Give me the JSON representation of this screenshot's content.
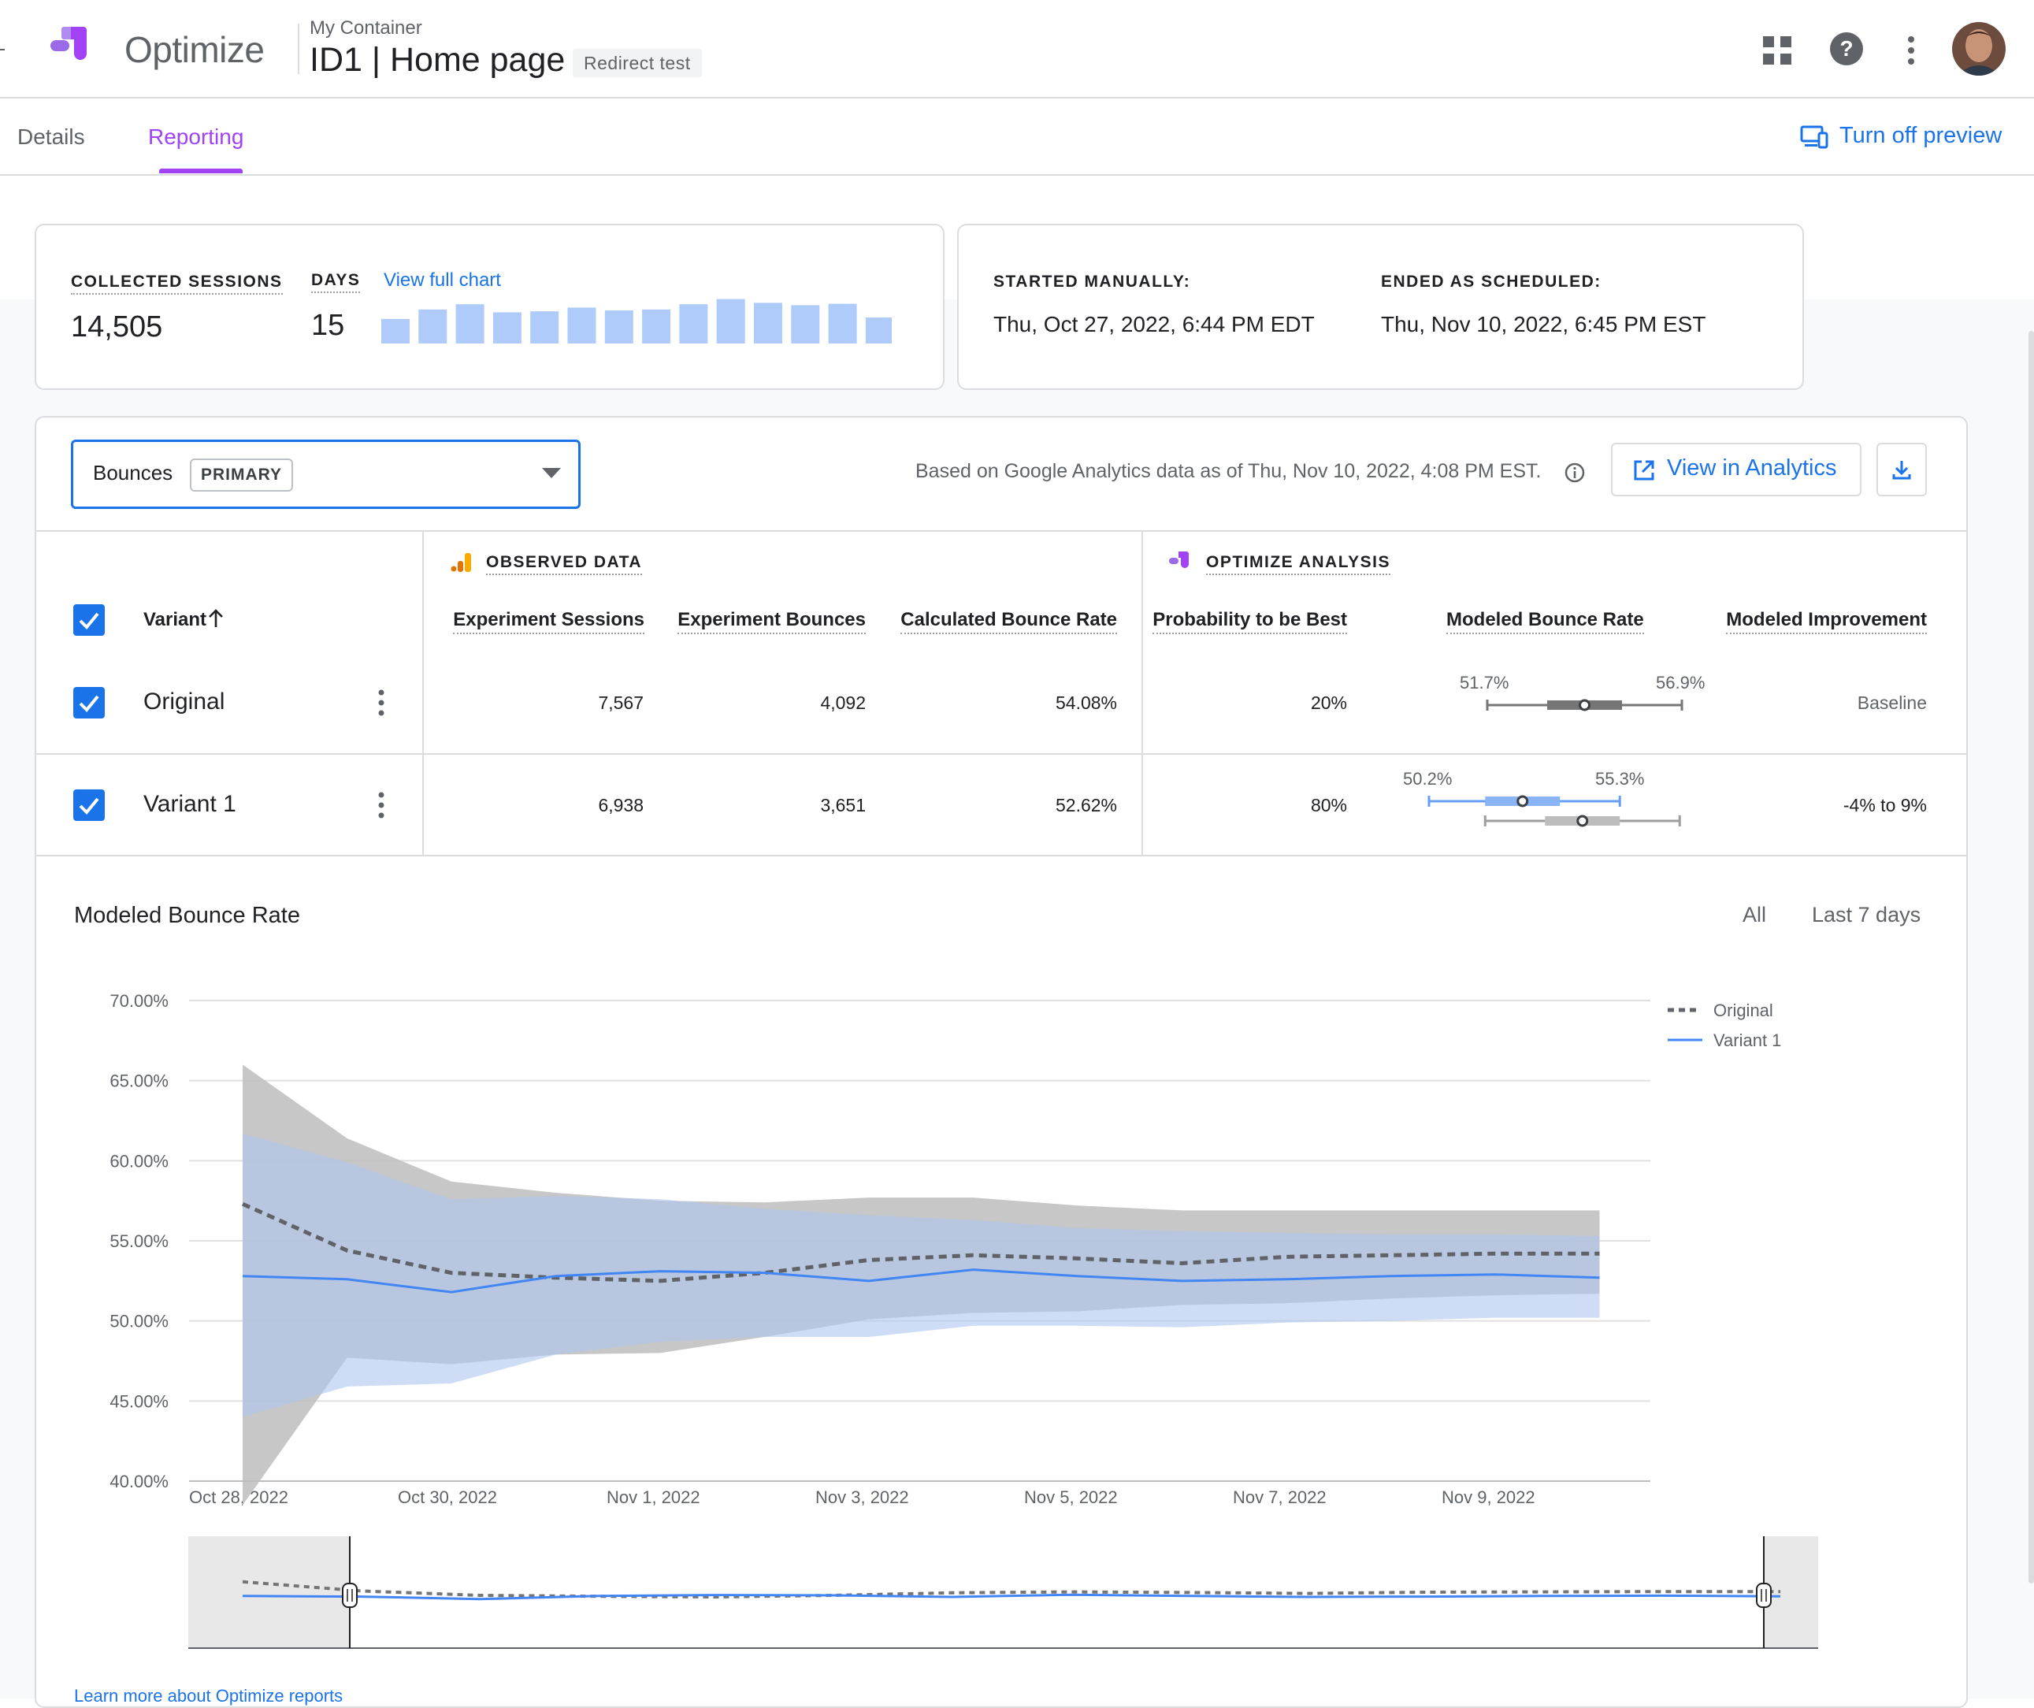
{
  "app": {
    "name": "Optimize",
    "container": "My Container",
    "experiment_title": "ID1 | Home page",
    "experiment_type": "Redirect test"
  },
  "icons": {
    "apps": "apps-grid-icon",
    "help": "help-icon",
    "more": "more-vert-icon",
    "preview": "devices-icon",
    "analytics": "open-in-new-icon",
    "download": "download-icon",
    "info": "info-icon"
  },
  "tabs": [
    {
      "label": "Details",
      "active": false
    },
    {
      "label": "Reporting",
      "active": true
    }
  ],
  "header_actions": {
    "turn_off_preview": "Turn off preview"
  },
  "summary": {
    "collected_sessions_label": "COLLECTED SESSIONS",
    "collected_sessions": "14,505",
    "days_label": "DAYS",
    "days": "15",
    "view_full_chart": "View full chart",
    "daily_sessions_relative": [
      0.52,
      0.72,
      0.83,
      0.66,
      0.68,
      0.76,
      0.7,
      0.72,
      0.83,
      0.94,
      0.86,
      0.81,
      0.84,
      0.55
    ]
  },
  "schedule": {
    "started_label": "STARTED MANUALLY:",
    "started": "Thu, Oct 27, 2022, 6:44 PM EDT",
    "ended_label": "ENDED AS SCHEDULED:",
    "ended": "Thu, Nov 10, 2022, 6:45 PM EST"
  },
  "objective": {
    "selected": "Bounces",
    "badge": "PRIMARY",
    "data_note": "Based on Google Analytics data as of Thu, Nov 10, 2022, 4:08 PM EST.",
    "view_in_analytics": "View in Analytics"
  },
  "table": {
    "observed_heading": "OBSERVED DATA",
    "analysis_heading": "OPTIMIZE ANALYSIS",
    "columns": {
      "variant": "Variant",
      "sessions": "Experiment Sessions",
      "bounces": "Experiment Bounces",
      "rate": "Calculated Bounce Rate",
      "probability": "Probability to be Best",
      "modeled": "Modeled Bounce Rate",
      "improvement": "Modeled Improvement"
    },
    "rows": [
      {
        "name": "Original",
        "sessions": "7,567",
        "bounces": "4,092",
        "rate": "54.08%",
        "probability": "20%",
        "low": "51.7%",
        "high": "56.9%",
        "improvement": "Baseline"
      },
      {
        "name": "Variant 1",
        "sessions": "6,938",
        "bounces": "3,651",
        "rate": "52.62%",
        "probability": "80%",
        "low": "50.2%",
        "high": "55.3%",
        "improvement": "-4% to 9%"
      }
    ]
  },
  "chart_header": {
    "title": "Modeled Bounce Rate",
    "range_all": "All",
    "range_7d": "Last 7 days"
  },
  "chart_data": {
    "type": "line",
    "x": [
      "Oct 28, 2022",
      "Oct 29, 2022",
      "Oct 30, 2022",
      "Oct 31, 2022",
      "Nov 1, 2022",
      "Nov 2, 2022",
      "Nov 3, 2022",
      "Nov 4, 2022",
      "Nov 5, 2022",
      "Nov 6, 2022",
      "Nov 7, 2022",
      "Nov 8, 2022",
      "Nov 9, 2022",
      "Nov 10, 2022"
    ],
    "x_tick_labels": [
      "Oct 28, 2022",
      "Oct 30, 2022",
      "Nov 1, 2022",
      "Nov 3, 2022",
      "Nov 5, 2022",
      "Nov 7, 2022",
      "Nov 9, 2022"
    ],
    "y_tick_labels": [
      "70.00%",
      "65.00%",
      "60.00%",
      "55.00%",
      "50.00%",
      "45.00%",
      "40.00%"
    ],
    "ylim": [
      40,
      70
    ],
    "grid": true,
    "legend": "top-right",
    "series": [
      {
        "name": "Original",
        "style": "dashed",
        "color": "#5f6368",
        "band_color": "#bdbdbd",
        "values": [
          57.3,
          54.4,
          53.0,
          52.7,
          52.5,
          53.0,
          53.8,
          54.1,
          53.9,
          53.6,
          54.0,
          54.1,
          54.2,
          54.2
        ],
        "lower": [
          38.5,
          47.7,
          47.3,
          47.9,
          48.0,
          49.0,
          50.1,
          50.5,
          50.6,
          51.0,
          51.1,
          51.4,
          51.6,
          51.7
        ],
        "upper": [
          66.0,
          61.4,
          58.7,
          58.0,
          57.5,
          57.4,
          57.7,
          57.7,
          57.2,
          56.9,
          56.9,
          56.9,
          56.9,
          56.9
        ]
      },
      {
        "name": "Variant 1",
        "style": "solid",
        "color": "#4285f4",
        "band_color": "#aec6ef",
        "values": [
          52.8,
          52.6,
          51.8,
          52.8,
          53.1,
          53.0,
          52.5,
          53.2,
          52.8,
          52.5,
          52.6,
          52.8,
          52.9,
          52.7
        ],
        "lower": [
          44.0,
          45.9,
          46.1,
          47.9,
          48.7,
          49.0,
          49.0,
          49.7,
          49.7,
          49.6,
          49.9,
          50.0,
          50.2,
          50.2
        ],
        "upper": [
          61.7,
          59.9,
          57.6,
          57.8,
          57.6,
          57.0,
          56.6,
          56.3,
          55.8,
          55.6,
          55.5,
          55.4,
          55.4,
          55.3
        ]
      }
    ]
  },
  "modeled_intervals": [
    {
      "name": "Original",
      "low": 51.7,
      "q1": 53.3,
      "median": 54.3,
      "q3": 55.3,
      "high": 56.9
    },
    {
      "name": "Variant 1",
      "low": 50.2,
      "q1": 51.7,
      "median": 52.7,
      "q3": 53.7,
      "high": 55.3
    }
  ],
  "footer": {
    "learn_more": "Learn more about Optimize reports"
  }
}
